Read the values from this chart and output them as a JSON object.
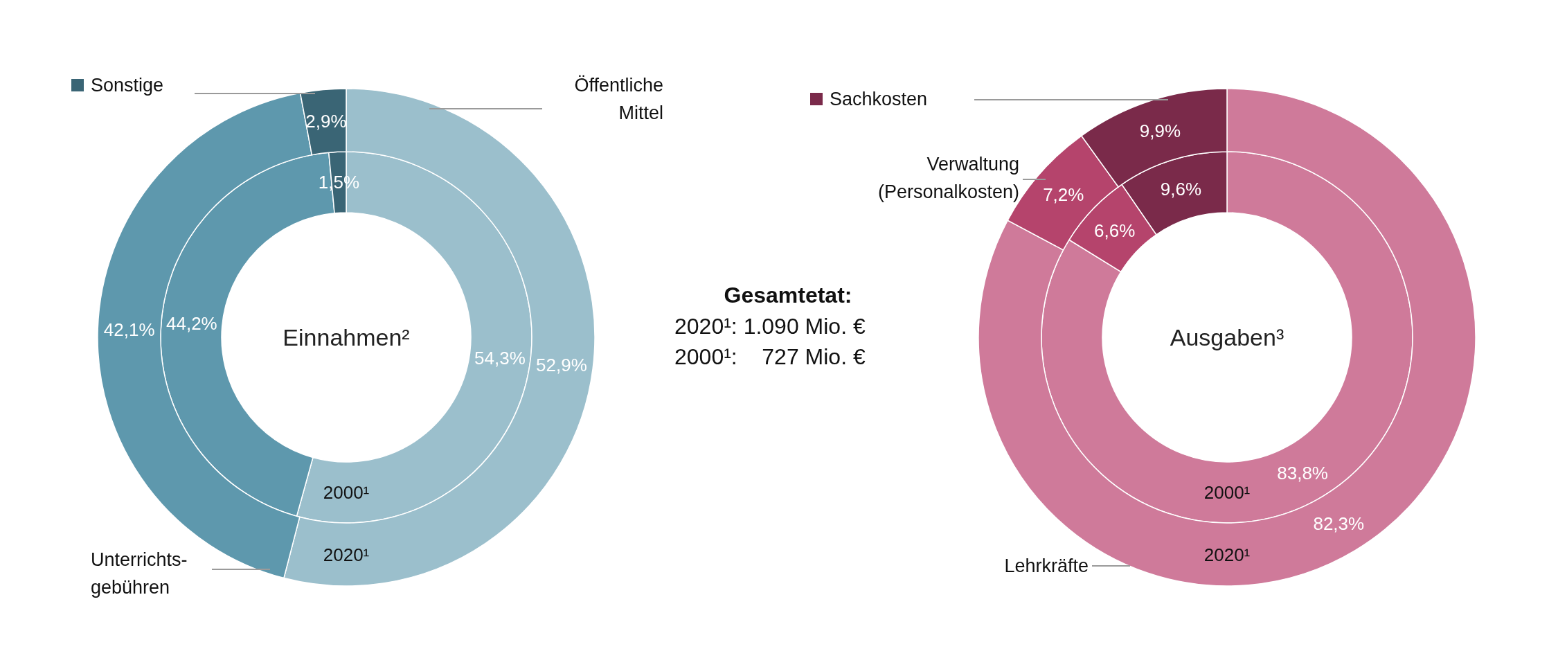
{
  "chart_data": [
    {
      "type": "donut",
      "title": "Einnahmen²",
      "categories": [
        "Öffentliche Mittel",
        "Unterrichts-gebühren",
        "Sonstige"
      ],
      "colors": [
        "#9bbfcc",
        "#5e98ad",
        "#3a6575"
      ],
      "series": [
        {
          "name": "2000¹",
          "values": [
            54.3,
            44.2,
            1.5
          ],
          "value_labels": [
            "54,3%",
            "44,2%",
            "1,5%"
          ]
        },
        {
          "name": "2020¹",
          "values": [
            52.9,
            42.1,
            2.9
          ],
          "value_labels": [
            "52,9%",
            "42,1%",
            "2,9%"
          ]
        }
      ]
    },
    {
      "type": "other",
      "title": "Gesamtetat:",
      "annotations": [
        "2020¹: 1.090 Mio. €",
        "2000¹:    727 Mio. €"
      ]
    },
    {
      "type": "donut",
      "title": "Ausgaben³",
      "categories": [
        "Lehrkräfte",
        "Verwaltung (Personalkosten)",
        "Sachkosten"
      ],
      "colors": [
        "#cf7a9a",
        "#b5446c",
        "#7a2a4a"
      ],
      "series": [
        {
          "name": "2000¹",
          "values": [
            83.8,
            6.6,
            9.6
          ],
          "value_labels": [
            "83,8%",
            "6,6%",
            "9,6%"
          ]
        },
        {
          "name": "2020¹",
          "values": [
            82.3,
            7.2,
            9.9
          ],
          "value_labels": [
            "82,3%",
            "7,2%",
            "9,9%"
          ]
        }
      ]
    }
  ]
}
